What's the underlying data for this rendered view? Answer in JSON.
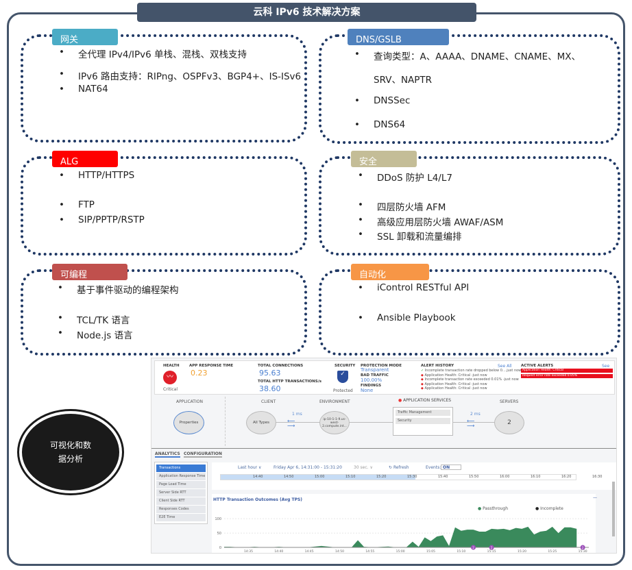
{
  "title": "云科 IPv6 技术解决方案",
  "sections": [
    {
      "tag": "网关",
      "color": "#4bacc6",
      "items": [
        "全代理 IPv4/IPv6 单栈、混栈、双栈支持",
        "IPv6 路由支持：RIPng、OSPFv3、BGP4+、IS-ISv6",
        "NAT64"
      ]
    },
    {
      "tag": "DNS/GSLB",
      "color": "#4f81bd",
      "items": [
        "查询类型：A、AAAA、DNAME、CNAME、MX、",
        "SRV、NAPTR",
        "DNSSec",
        "DNS64"
      ]
    },
    {
      "tag": "ALG",
      "color": "#ff0000",
      "items": [
        "HTTP/HTTPS",
        "FTP",
        "SIP/PPTP/RSTP"
      ]
    },
    {
      "tag": "安全",
      "color": "#c4bd97",
      "items": [
        "DDoS 防护 L4/L7",
        "四层防火墙 AFM",
        "高级应用层防火墙 AWAF/ASM",
        "SSL 卸载和流量编排"
      ]
    },
    {
      "tag": "可编程",
      "color": "#c0504d",
      "items": [
        "基于事件驱动的编程架构",
        "TCL/TK 语言",
        "Node.js 语言"
      ]
    },
    {
      "tag": "自动化",
      "color": "#f79646",
      "items": [
        "iControl RESTful API",
        "Ansible Playbook"
      ]
    }
  ],
  "circle_label": "可视化和数据分析",
  "dashboard": {
    "health": {
      "label": "HEALTH",
      "status": "Critical",
      "icon": "heartbeat-icon"
    },
    "app_response": {
      "label": "APP RESPONSE TIME",
      "value": "0.23"
    },
    "connections": {
      "label": "TOTAL CONNECTIONS",
      "value": "95.63"
    },
    "http_tx": {
      "label": "TOTAL HTTP TRANSACTIONS/s",
      "value": "38.60"
    },
    "security": {
      "label": "SECURITY",
      "status": "Protected",
      "icon": "shield-check-icon"
    },
    "protection": {
      "mode_label": "PROTECTION MODE",
      "mode": "Transparent",
      "bad_label": "BAD TRAFFIC",
      "bad": "100.00%",
      "findings_label": "FINDINGS",
      "findings": "None"
    },
    "alert_history": {
      "label": "ALERT HISTORY",
      "see_all": "See All",
      "items": [
        "Incomplete transaction rate dropped below 0....just now",
        "Application Health: Critical -just now",
        "Incomplete transaction rate exceeded 0.01% -just now",
        "Application Health: Critical -just now",
        "Application Health: Critical -just now"
      ]
    },
    "active_alerts": {
      "label": "ACTIVE ALERTS",
      "see_all": "See All",
      "items": [
        "Application Health: Critical",
        "Request error rate exceeded 0.05%"
      ]
    },
    "topology": {
      "application": "APPLICATION",
      "client": "CLIENT",
      "environment": "ENVIRONMENT",
      "app_services": "APPLICATION SERVICES",
      "servers": "SERVERS",
      "app_node": "Properties",
      "client_node": "All Types",
      "env_node": "ip-10-1-1-9.us-west-2.compute.int...",
      "client_latency": "1 ms",
      "server_latency": "2 ms",
      "services": [
        "Traffic Management",
        "Security"
      ],
      "servers_count": "2"
    },
    "tabs": [
      "ANALYTICS",
      "CONFIGURATION"
    ],
    "menu": [
      "Transactions",
      "Application Response Time",
      "Page Load Time",
      "Server Side RTT",
      "Client Side RTT",
      "Responses Codes",
      "E2E Time"
    ],
    "range": "Last hour ∨",
    "date": "Friday Apr 6, 14:31:00 - 15:31:20",
    "interval": "30 sec. ∨",
    "refresh": "Refresh",
    "events_label": "Events:",
    "events_value": "ON",
    "timeline": [
      "14:40",
      "14:50",
      "15:00",
      "15:10",
      "15:20",
      "15:30",
      "15:40",
      "15:50",
      "16:00",
      "16:10",
      "16:20",
      "16:30"
    ]
  },
  "chart_data": {
    "type": "area",
    "title": "HTTP Transaction Outcomes (Avg TPS)",
    "legend": [
      "Passthrough",
      "Incomplete"
    ],
    "legend_placement": "top-right",
    "colors": {
      "Passthrough": "#3a8a5c",
      "Incomplete": "#222222"
    },
    "x_ticks": [
      "14:35",
      "14:40",
      "14:45",
      "14:50",
      "14:55",
      "15:00",
      "15:05",
      "15:10",
      "15:15",
      "15:20",
      "15:25",
      "15:30"
    ],
    "y_ticks": [
      0,
      50,
      100
    ],
    "ylim": [
      0,
      110
    ],
    "x_start": "14:31",
    "x_end": "15:31",
    "series": [
      {
        "name": "Passthrough",
        "x": [
          "14:31",
          "14:32",
          "14:33",
          "14:34",
          "14:35",
          "14:36",
          "14:37",
          "14:38",
          "14:39",
          "14:40",
          "14:41",
          "14:42",
          "14:43",
          "14:44",
          "14:45",
          "14:46",
          "14:47",
          "14:48",
          "14:49",
          "14:50",
          "14:51",
          "14:52",
          "14:53",
          "14:54",
          "14:55",
          "14:56",
          "14:57",
          "14:58",
          "14:59",
          "15:00",
          "15:01",
          "15:02",
          "15:03",
          "15:04",
          "15:05",
          "15:06",
          "15:07",
          "15:08",
          "15:09",
          "15:10",
          "15:11",
          "15:12",
          "15:13",
          "15:14",
          "15:15",
          "15:16",
          "15:17",
          "15:18",
          "15:19",
          "15:20",
          "15:21",
          "15:22",
          "15:23",
          "15:24",
          "15:25",
          "15:26",
          "15:27",
          "15:28",
          "15:29"
        ],
        "values": [
          2,
          2,
          1,
          1,
          1,
          2,
          1,
          1,
          1,
          2,
          1,
          1,
          1,
          1,
          1,
          3,
          5,
          3,
          1,
          1,
          1,
          1,
          25,
          2,
          1,
          1,
          2,
          3,
          1,
          1,
          1,
          20,
          2,
          35,
          22,
          38,
          42,
          5,
          70,
          58,
          62,
          62,
          55,
          55,
          65,
          63,
          65,
          60,
          68,
          65,
          72,
          45,
          55,
          58,
          72,
          50,
          70,
          70,
          65
        ]
      }
    ],
    "event_markers": [
      {
        "x": "15:12",
        "label": "2"
      },
      {
        "x": "15:15",
        "label": "2"
      },
      {
        "x": "15:30",
        "label": "2"
      }
    ]
  }
}
